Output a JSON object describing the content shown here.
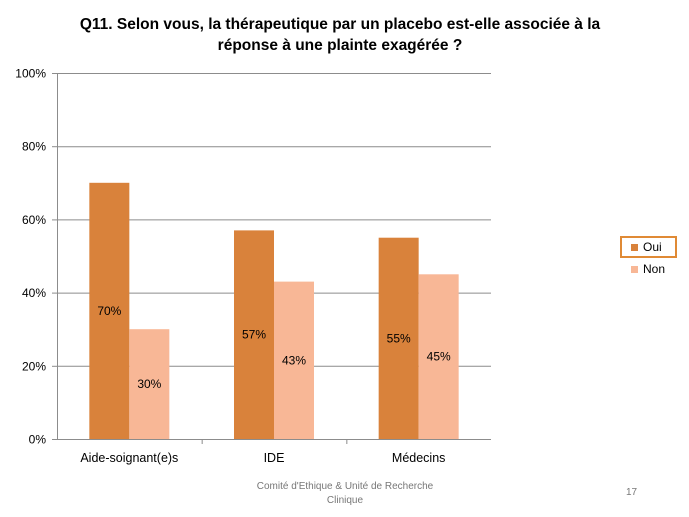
{
  "chart_data": {
    "type": "bar",
    "title": "Q11. Selon vous, la thérapeutique par un placebo est-elle associée à la réponse à une plainte exagérée ?",
    "categories": [
      "Aide-soignant(e)s",
      "IDE",
      "Médecins"
    ],
    "series": [
      {
        "name": "Oui",
        "values": [
          70,
          57,
          55
        ],
        "labels": [
          "70%",
          "57%",
          "55%"
        ],
        "color": "#d9823b"
      },
      {
        "name": "Non",
        "values": [
          30,
          43,
          45
        ],
        "labels": [
          "30%",
          "43%",
          "45%"
        ],
        "color": "#f8b796"
      }
    ],
    "ylim": [
      0,
      100
    ],
    "yticks": [
      0,
      20,
      40,
      60,
      80,
      100
    ],
    "ytick_labels": [
      "0%",
      "20%",
      "40%",
      "60%",
      "80%",
      "100%"
    ],
    "grid": true,
    "legend_position": "right",
    "xlabel": "",
    "ylabel": ""
  },
  "legend": {
    "oui": "Oui",
    "non": "Non",
    "selected": "Oui"
  },
  "footer": {
    "org_line1": "Comité d'Ethique & Unité de Recherche",
    "org_line2": "Clinique",
    "page_number": "17"
  }
}
